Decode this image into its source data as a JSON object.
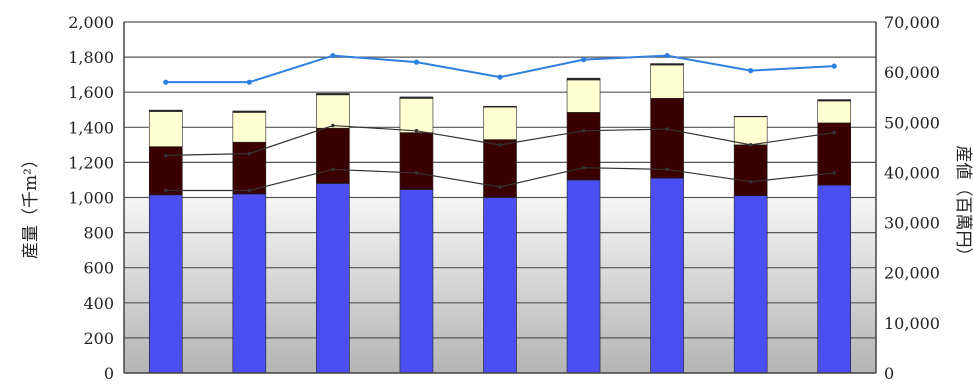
{
  "chart_data": {
    "type": "bar",
    "stacked": true,
    "dual_axis": true,
    "categories": [
      "",
      "",
      "",
      "",
      "",
      "",
      "",
      "",
      ""
    ],
    "left_axis": {
      "title": "産量（千m²）",
      "min": 0,
      "max": 2000,
      "step": 200,
      "tick_labels": [
        "0",
        "200",
        "400",
        "600",
        "800",
        "1,000",
        "1,200",
        "1,400",
        "1,600",
        "1,800",
        "2,000"
      ]
    },
    "right_axis": {
      "title": "産値（百萬円）",
      "min": 0,
      "max": 70000,
      "step": 10000,
      "tick_labels": [
        "0",
        "10,000",
        "20,000",
        "30,000",
        "40,000",
        "50,000",
        "60,000",
        "70,000"
      ]
    },
    "series": [
      {
        "type": "bar",
        "color": "#4b4ef0",
        "values": [
          1015,
          1020,
          1080,
          1045,
          1000,
          1100,
          1110,
          1010,
          1070
        ]
      },
      {
        "type": "bar",
        "color": "#3a0000",
        "values": [
          275,
          295,
          315,
          325,
          330,
          385,
          455,
          290,
          355
        ]
      },
      {
        "type": "bar",
        "color": "#ffffd2",
        "values": [
          200,
          170,
          190,
          195,
          185,
          185,
          190,
          160,
          125
        ]
      },
      {
        "type": "bar",
        "color": "#2a2a2a",
        "values": [
          8,
          8,
          8,
          8,
          5,
          10,
          8,
          3,
          8
        ]
      },
      {
        "type": "line",
        "axis": "right",
        "color": "#2e7fe0",
        "values": [
          58000,
          58000,
          63300,
          62000,
          59000,
          62500,
          63300,
          60300,
          61200
        ]
      },
      {
        "type": "line",
        "axis": "left",
        "color": "#333333",
        "values": [
          1040,
          1040,
          1160,
          1140,
          1060,
          1170,
          1160,
          1090,
          1140
        ]
      },
      {
        "type": "line",
        "axis": "left",
        "color": "#333333",
        "values": [
          1240,
          1250,
          1410,
          1380,
          1300,
          1380,
          1390,
          1300,
          1370
        ]
      }
    ],
    "grid": true,
    "background": {
      "upper": "#ffffff",
      "lower_gradient": [
        "#f4f4f4",
        "#b8b8b8"
      ]
    }
  }
}
